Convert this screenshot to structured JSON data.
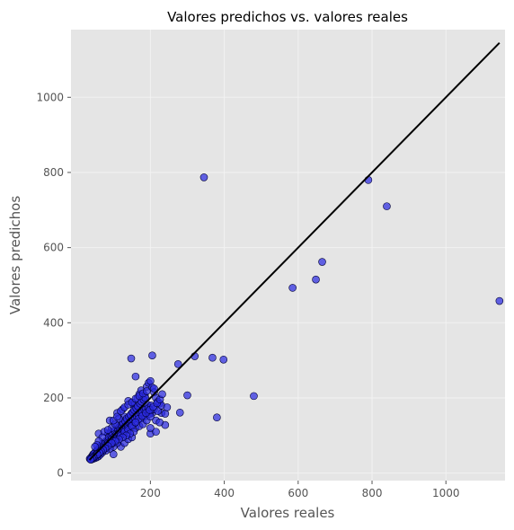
{
  "chart_data": {
    "type": "scatter",
    "title": "Valores predichos vs. valores reales",
    "xlabel": "Valores reales",
    "ylabel": "Valores predichos",
    "xlim": [
      -15,
      1160
    ],
    "ylim": [
      -20,
      1180
    ],
    "xticks": [
      200,
      400,
      600,
      800,
      1000
    ],
    "yticks": [
      0,
      200,
      400,
      600,
      800,
      1000
    ],
    "xtick_labels": [
      "200",
      "400",
      "600",
      "800",
      "1000"
    ],
    "ytick_labels": [
      "0",
      "200",
      "400",
      "600",
      "800",
      "1000"
    ],
    "grid": true,
    "legend": "none",
    "colors": {
      "background": "#e5e5e5",
      "grid": "#f2f2f2",
      "marker_fill": "#2b2be0",
      "marker_edge": "#000033",
      "reference_line": "#000000"
    },
    "reference_line": {
      "x": [
        35,
        1145
      ],
      "y": [
        35,
        1145
      ]
    },
    "series": [
      {
        "points": [
          [
            345,
            787
          ],
          [
            790,
            780
          ],
          [
            840,
            710
          ],
          [
            665,
            562
          ],
          [
            648,
            515
          ],
          [
            585,
            493
          ],
          [
            1145,
            458
          ],
          [
            148,
            305
          ],
          [
            205,
            313
          ],
          [
            320,
            311
          ],
          [
            368,
            307
          ],
          [
            398,
            302
          ],
          [
            275,
            290
          ],
          [
            160,
            257
          ],
          [
            300,
            207
          ],
          [
            480,
            205
          ],
          [
            280,
            161
          ],
          [
            380,
            148
          ],
          [
            240,
            128
          ],
          [
            200,
            105
          ],
          [
            140,
            192
          ],
          [
            150,
            188
          ],
          [
            155,
            180
          ],
          [
            165,
            200
          ],
          [
            170,
            210
          ],
          [
            175,
            220
          ],
          [
            180,
            195
          ],
          [
            185,
            205
          ],
          [
            190,
            230
          ],
          [
            195,
            240
          ],
          [
            200,
            245
          ],
          [
            205,
            228
          ],
          [
            210,
            215
          ],
          [
            215,
            200
          ],
          [
            220,
            190
          ],
          [
            225,
            185
          ],
          [
            230,
            160
          ],
          [
            215,
            140
          ],
          [
            205,
            160
          ],
          [
            195,
            175
          ],
          [
            185,
            150
          ],
          [
            175,
            145
          ],
          [
            170,
            165
          ],
          [
            160,
            175
          ],
          [
            150,
            160
          ],
          [
            145,
            150
          ],
          [
            140,
            130
          ],
          [
            135,
            140
          ],
          [
            130,
            150
          ],
          [
            125,
            135
          ],
          [
            120,
            120
          ],
          [
            115,
            110
          ],
          [
            110,
            125
          ],
          [
            105,
            100
          ],
          [
            100,
            95
          ],
          [
            95,
            110
          ],
          [
            90,
            90
          ],
          [
            85,
            105
          ],
          [
            80,
            85
          ],
          [
            75,
            80
          ],
          [
            70,
            78
          ],
          [
            65,
            70
          ],
          [
            60,
            65
          ],
          [
            55,
            60
          ],
          [
            50,
            55
          ],
          [
            45,
            50
          ],
          [
            42,
            45
          ],
          [
            40,
            42
          ],
          [
            38,
            40
          ],
          [
            36,
            38
          ],
          [
            44,
            46
          ],
          [
            48,
            52
          ],
          [
            52,
            48
          ],
          [
            56,
            58
          ],
          [
            58,
            62
          ],
          [
            62,
            56
          ],
          [
            66,
            72
          ],
          [
            68,
            64
          ],
          [
            72,
            75
          ],
          [
            74,
            68
          ],
          [
            78,
            82
          ],
          [
            82,
            76
          ],
          [
            84,
            88
          ],
          [
            86,
            80
          ],
          [
            88,
            95
          ],
          [
            92,
            85
          ],
          [
            94,
            98
          ],
          [
            96,
            92
          ],
          [
            98,
            105
          ],
          [
            102,
            96
          ],
          [
            104,
            112
          ],
          [
            108,
            102
          ],
          [
            112,
            118
          ],
          [
            114,
            106
          ],
          [
            116,
            122
          ],
          [
            118,
            112
          ],
          [
            122,
            128
          ],
          [
            124,
            115
          ],
          [
            126,
            132
          ],
          [
            128,
            120
          ],
          [
            132,
            138
          ],
          [
            134,
            124
          ],
          [
            136,
            145
          ],
          [
            138,
            128
          ],
          [
            142,
            150
          ],
          [
            144,
            135
          ],
          [
            146,
            155
          ],
          [
            148,
            138
          ],
          [
            152,
            162
          ],
          [
            154,
            142
          ],
          [
            156,
            168
          ],
          [
            158,
            146
          ],
          [
            162,
            172
          ],
          [
            164,
            150
          ],
          [
            166,
            178
          ],
          [
            168,
            155
          ],
          [
            172,
            185
          ],
          [
            174,
            158
          ],
          [
            176,
            190
          ],
          [
            178,
            162
          ],
          [
            182,
            195
          ],
          [
            184,
            168
          ],
          [
            186,
            200
          ],
          [
            188,
            170
          ],
          [
            192,
            182
          ],
          [
            194,
            172
          ],
          [
            196,
            165
          ],
          [
            198,
            158
          ],
          [
            202,
            180
          ],
          [
            60,
            105
          ],
          [
            90,
            140
          ],
          [
            110,
            160
          ],
          [
            125,
            170
          ],
          [
            95,
            120
          ],
          [
            105,
            130
          ],
          [
            115,
            145
          ],
          [
            75,
            110
          ],
          [
            85,
            115
          ],
          [
            70,
            95
          ],
          [
            60,
            85
          ],
          [
            55,
            75
          ],
          [
            50,
            70
          ],
          [
            100,
            50
          ],
          [
            120,
            70
          ],
          [
            130,
            80
          ],
          [
            140,
            90
          ],
          [
            150,
            95
          ],
          [
            160,
            120
          ],
          [
            170,
            125
          ],
          [
            180,
            130
          ],
          [
            190,
            140
          ],
          [
            200,
            150
          ],
          [
            210,
            170
          ],
          [
            220,
            165
          ],
          [
            230,
            180
          ],
          [
            215,
            110
          ],
          [
            225,
            135
          ],
          [
            200,
            120
          ],
          [
            110,
            80
          ],
          [
            100,
            70
          ],
          [
            90,
            65
          ],
          [
            80,
            60
          ],
          [
            70,
            55
          ],
          [
            65,
            50
          ],
          [
            60,
            45
          ],
          [
            55,
            42
          ],
          [
            50,
            40
          ],
          [
            45,
            38
          ],
          [
            40,
            36
          ],
          [
            48,
            44
          ],
          [
            52,
            46
          ],
          [
            58,
            50
          ],
          [
            64,
            56
          ],
          [
            76,
            66
          ],
          [
            96,
            78
          ],
          [
            106,
            88
          ],
          [
            118,
            98
          ],
          [
            128,
            108
          ],
          [
            138,
            118
          ],
          [
            148,
            126
          ],
          [
            158,
            134
          ],
          [
            168,
            144
          ],
          [
            178,
            152
          ],
          [
            188,
            160
          ],
          [
            198,
            168
          ],
          [
            208,
            176
          ],
          [
            218,
            186
          ],
          [
            226,
            196
          ],
          [
            232,
            210
          ],
          [
            240,
            158
          ],
          [
            245,
            175
          ],
          [
            120,
            100
          ],
          [
            130,
            110
          ],
          [
            140,
            115
          ],
          [
            150,
            125
          ],
          [
            160,
            135
          ],
          [
            155,
            110
          ],
          [
            145,
            105
          ],
          [
            135,
            100
          ],
          [
            125,
            95
          ],
          [
            115,
            90
          ],
          [
            105,
            85
          ],
          [
            95,
            80
          ],
          [
            85,
            72
          ],
          [
            78,
            66
          ],
          [
            72,
            62
          ],
          [
            66,
            58
          ],
          [
            62,
            54
          ],
          [
            56,
            50
          ],
          [
            46,
            42
          ],
          [
            42,
            40
          ],
          [
            38,
            36
          ],
          [
            100,
            140
          ],
          [
            110,
            150
          ],
          [
            120,
            165
          ],
          [
            130,
            175
          ],
          [
            140,
            182
          ],
          [
            150,
            188
          ],
          [
            160,
            198
          ],
          [
            170,
            205
          ],
          [
            180,
            212
          ],
          [
            190,
            218
          ],
          [
            210,
            225
          ]
        ]
      }
    ]
  }
}
